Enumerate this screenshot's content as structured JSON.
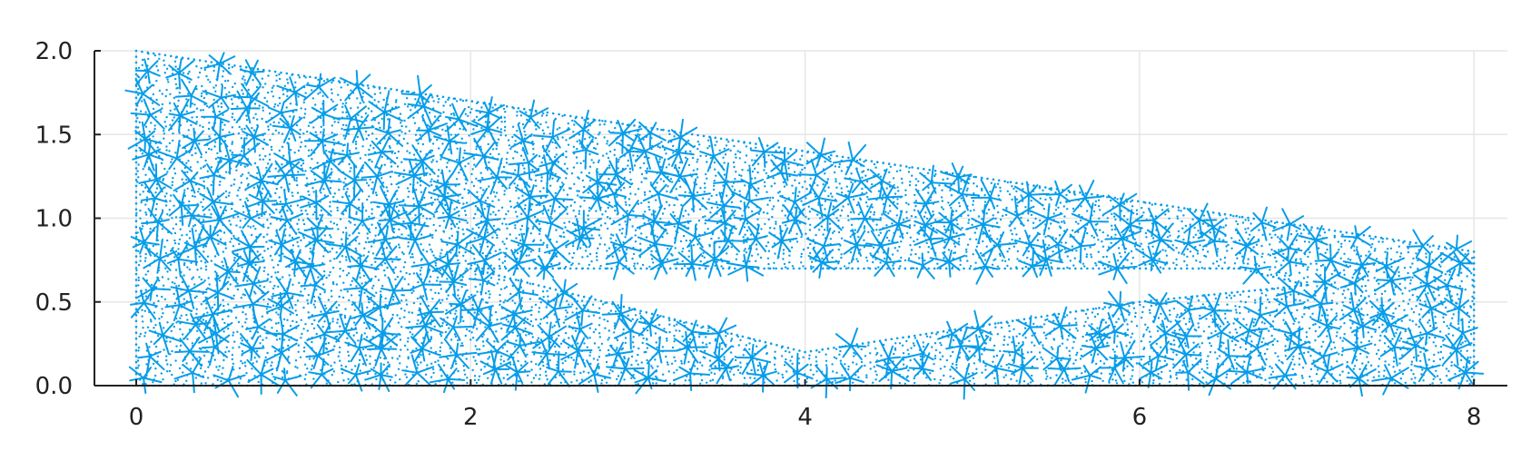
{
  "chart_data": {
    "type": "mesh-scatter",
    "title": "",
    "xlabel": "",
    "ylabel": "",
    "xlim": [
      -0.25,
      8.2
    ],
    "ylim": [
      0,
      2.0
    ],
    "x_ticks": [
      0,
      2,
      4,
      6,
      8
    ],
    "x_tick_labels": [
      "0",
      "2",
      "4",
      "6",
      "8"
    ],
    "y_ticks": [
      0.0,
      0.5,
      1.0,
      1.5,
      2.0
    ],
    "y_tick_labels": [
      "0.0",
      "0.5",
      "1.0",
      "1.5",
      "2.0"
    ],
    "grid": true,
    "legend": "none",
    "color": "#089de8",
    "outer_boundary": [
      [
        0,
        0
      ],
      [
        8,
        0
      ],
      [
        8,
        0.8
      ],
      [
        0,
        2.0
      ]
    ],
    "hole_boundary": [
      [
        2,
        0.7
      ],
      [
        6.6,
        0.7
      ],
      [
        7,
        0.6
      ],
      [
        6,
        0.5
      ],
      [
        4,
        0.2
      ]
    ],
    "series": [
      {
        "values_note_free": true
      }
    ]
  }
}
